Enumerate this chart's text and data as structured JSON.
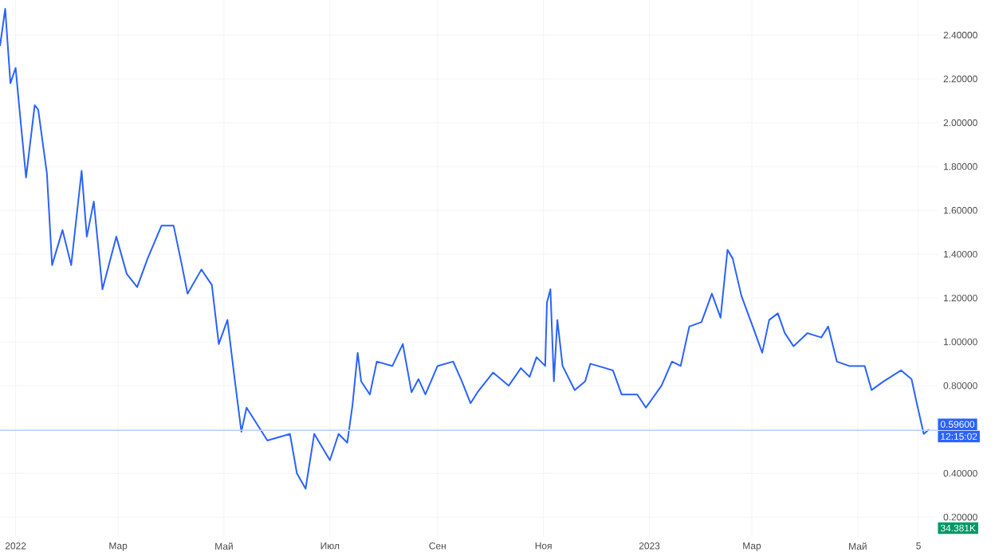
{
  "chart_data": {
    "type": "line",
    "color": "#2962ff",
    "grid": true,
    "marker": "none",
    "line_style": "solid",
    "xlim": [
      "2021-12-23",
      "2023-06-16"
    ],
    "ylim": [
      0.11,
      2.56
    ],
    "xticks": [
      {
        "value": "2022-01-01",
        "label": "2022"
      },
      {
        "value": "2022-03-01",
        "label": "Мар"
      },
      {
        "value": "2022-05-01",
        "label": "Май"
      },
      {
        "value": "2022-07-01",
        "label": "Июл"
      },
      {
        "value": "2022-09-01",
        "label": "Сен"
      },
      {
        "value": "2022-11-01",
        "label": "Ноя"
      },
      {
        "value": "2023-01-01",
        "label": "2023"
      },
      {
        "value": "2023-03-01",
        "label": "Мар"
      },
      {
        "value": "2023-05-01",
        "label": "Май"
      },
      {
        "value": "2023-06-05",
        "label": "5"
      }
    ],
    "yticks": [
      {
        "value": 0.2,
        "label": "0.20000"
      },
      {
        "value": 0.4,
        "label": "0.40000"
      },
      {
        "value": 0.6,
        "label": null
      },
      {
        "value": 0.8,
        "label": "0.80000"
      },
      {
        "value": 1.0,
        "label": "1.00000"
      },
      {
        "value": 1.2,
        "label": "1.20000"
      },
      {
        "value": 1.4,
        "label": "1.40000"
      },
      {
        "value": 1.6,
        "label": "1.60000"
      },
      {
        "value": 1.8,
        "label": "1.80000"
      },
      {
        "value": 2.0,
        "label": "2.00000"
      },
      {
        "value": 2.2,
        "label": "2.20000"
      },
      {
        "value": 2.4,
        "label": "2.40000"
      }
    ],
    "ref_lines": [
      {
        "axis": "y",
        "value": 0.596,
        "label": "0.59600",
        "color": "#bbd0ff"
      }
    ],
    "annotations": [
      "12:15:02",
      "34.381K"
    ],
    "x": [
      "2021-12-23",
      "2021-12-26",
      "2021-12-29",
      "2022-01-01",
      "2022-01-03",
      "2022-01-07",
      "2022-01-12",
      "2022-01-14",
      "2022-01-19",
      "2022-01-22",
      "2022-01-28",
      "2022-02-02",
      "2022-02-08",
      "2022-02-11",
      "2022-02-15",
      "2022-02-20",
      "2022-02-28",
      "2022-03-06",
      "2022-03-12",
      "2022-03-18",
      "2022-03-26",
      "2022-04-02",
      "2022-04-07",
      "2022-04-10",
      "2022-04-18",
      "2022-04-24",
      "2022-04-28",
      "2022-05-03",
      "2022-05-07",
      "2022-05-11",
      "2022-05-14",
      "2022-05-26",
      "2022-06-08",
      "2022-06-12",
      "2022-06-17",
      "2022-06-22",
      "2022-07-01",
      "2022-07-06",
      "2022-07-11",
      "2022-07-14",
      "2022-07-17",
      "2022-07-19",
      "2022-07-24",
      "2022-07-28",
      "2022-08-06",
      "2022-08-12",
      "2022-08-17",
      "2022-08-21",
      "2022-08-25",
      "2022-09-01",
      "2022-09-10",
      "2022-09-15",
      "2022-09-20",
      "2022-09-24",
      "2022-10-03",
      "2022-10-12",
      "2022-10-19",
      "2022-10-24",
      "2022-10-28",
      "2022-11-02",
      "2022-11-03",
      "2022-11-05",
      "2022-11-07",
      "2022-11-09",
      "2022-11-12",
      "2022-11-19",
      "2022-11-25",
      "2022-11-28",
      "2022-12-11",
      "2022-12-16",
      "2022-12-25",
      "2022-12-30",
      "2023-01-08",
      "2023-01-14",
      "2023-01-19",
      "2023-01-24",
      "2023-01-31",
      "2023-02-06",
      "2023-02-11",
      "2023-02-15",
      "2023-02-18",
      "2023-02-23",
      "2023-03-02",
      "2023-03-07",
      "2023-03-11",
      "2023-03-16",
      "2023-03-20",
      "2023-03-25",
      "2023-04-02",
      "2023-04-10",
      "2023-04-14",
      "2023-04-19",
      "2023-04-26",
      "2023-05-05",
      "2023-05-09",
      "2023-05-16",
      "2023-05-26",
      "2023-06-01",
      "2023-06-04",
      "2023-06-08",
      "2023-06-11"
    ],
    "values": [
      2.35,
      2.52,
      2.18,
      2.25,
      2.08,
      1.75,
      2.08,
      2.06,
      1.77,
      1.35,
      1.51,
      1.35,
      1.78,
      1.48,
      1.64,
      1.24,
      1.48,
      1.31,
      1.25,
      1.38,
      1.53,
      1.53,
      1.34,
      1.22,
      1.33,
      1.26,
      0.99,
      1.1,
      0.84,
      0.59,
      0.7,
      0.55,
      0.58,
      0.4,
      0.33,
      0.58,
      0.46,
      0.58,
      0.54,
      0.71,
      0.95,
      0.82,
      0.76,
      0.91,
      0.89,
      0.99,
      0.77,
      0.83,
      0.76,
      0.89,
      0.91,
      0.82,
      0.72,
      0.77,
      0.86,
      0.8,
      0.88,
      0.84,
      0.93,
      0.89,
      1.18,
      1.24,
      0.82,
      1.1,
      0.89,
      0.78,
      0.82,
      0.9,
      0.87,
      0.76,
      0.76,
      0.7,
      0.8,
      0.91,
      0.89,
      1.07,
      1.09,
      1.22,
      1.11,
      1.42,
      1.38,
      1.21,
      1.06,
      0.95,
      1.1,
      1.13,
      1.04,
      0.98,
      1.04,
      1.02,
      1.07,
      0.91,
      0.89,
      0.89,
      0.78,
      0.82,
      0.87,
      0.83,
      0.72,
      0.58,
      0.6
    ]
  }
}
